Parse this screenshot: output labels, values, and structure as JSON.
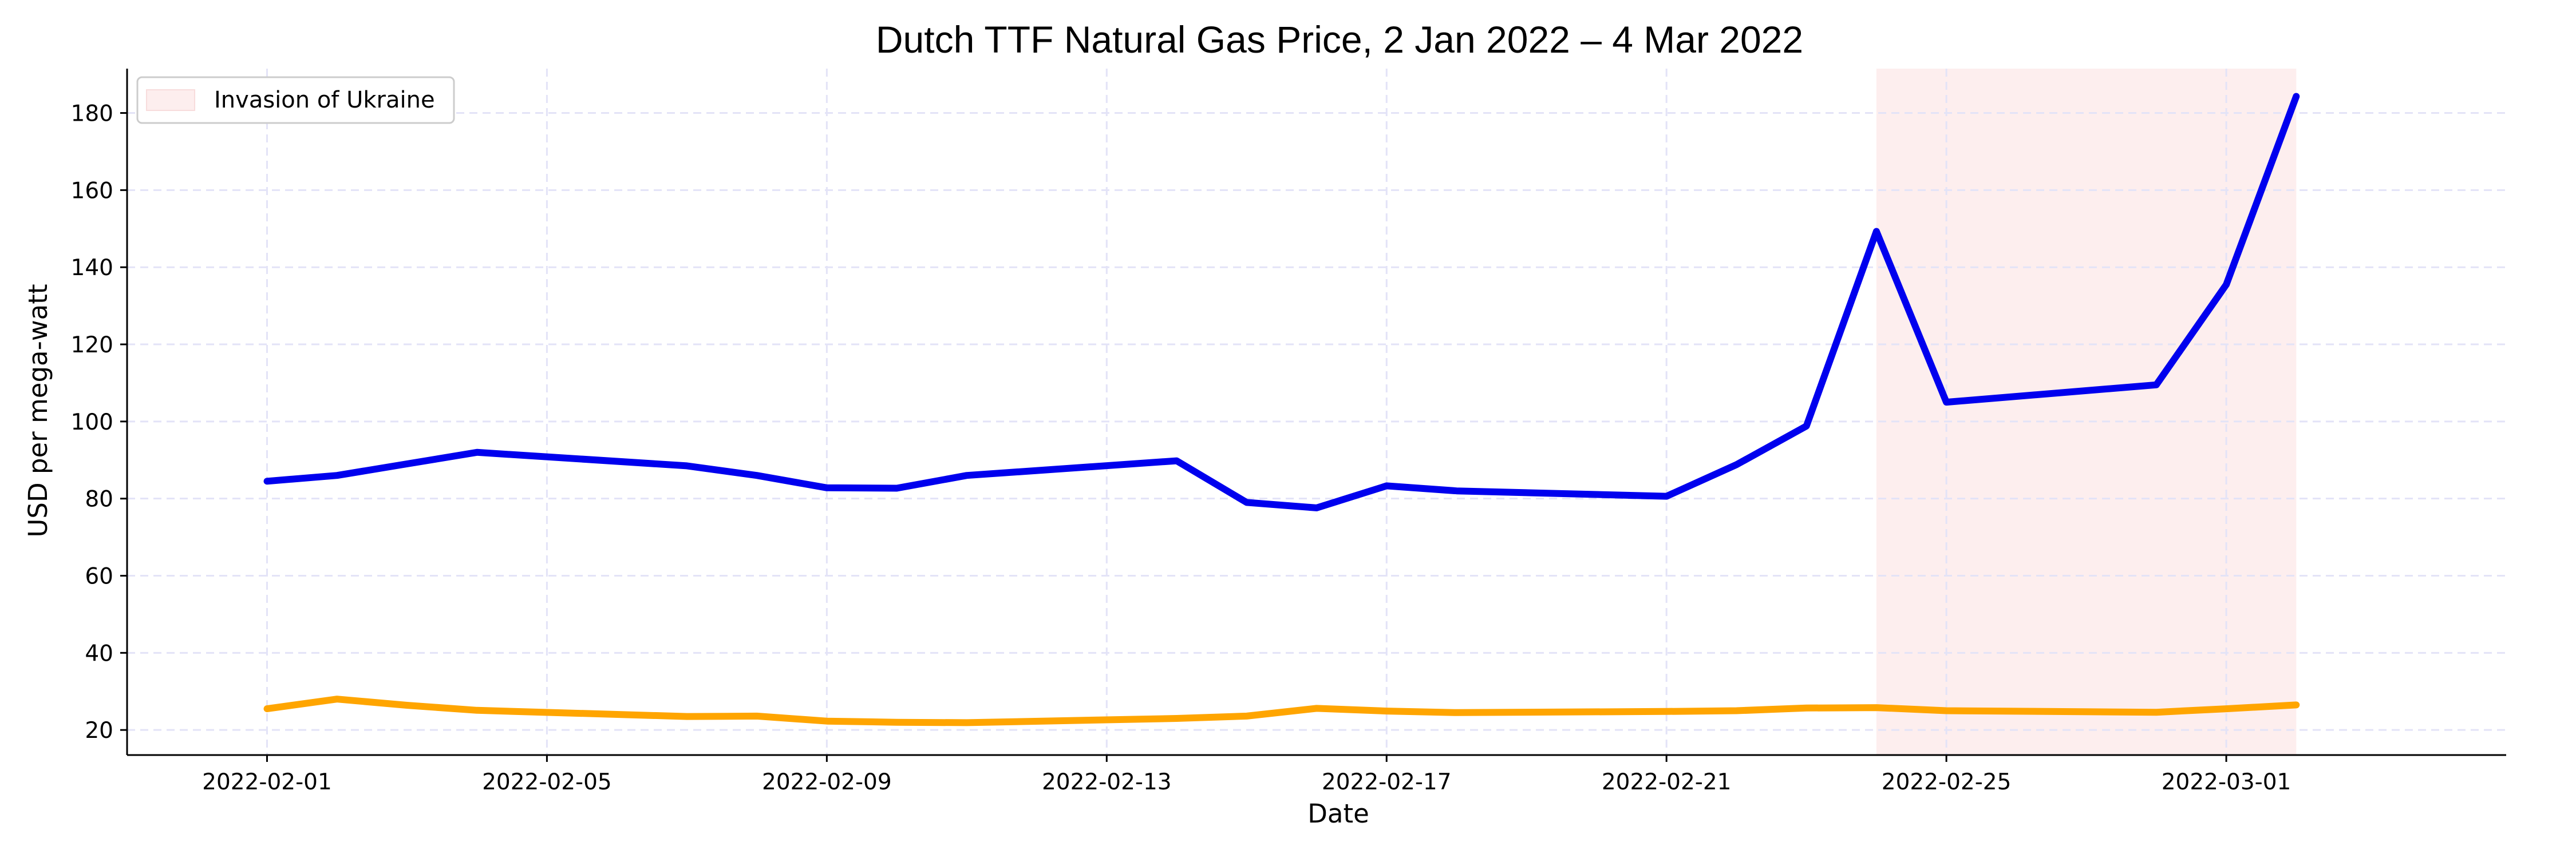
{
  "chart_data": {
    "type": "line",
    "title": "Dutch TTF Natural Gas Price, 2 Jan 2022 – 4 Mar 2022",
    "xlabel": "Date",
    "ylabel": "USD per mega-watt",
    "xlim": [
      "2022-01-30",
      "2022-03-05"
    ],
    "ylim": [
      13.5,
      191.5
    ],
    "x_ticks": [
      "2022-02-01",
      "2022-02-05",
      "2022-02-09",
      "2022-02-13",
      "2022-02-17",
      "2022-02-21",
      "2022-02-25",
      "2022-03-01"
    ],
    "y_ticks": [
      20,
      40,
      60,
      80,
      100,
      120,
      140,
      160,
      180
    ],
    "grid": true,
    "legend": {
      "placement": "top-left",
      "entries": [
        "Invasion of Ukraine"
      ]
    },
    "shaded_span": {
      "name": "Invasion of Ukraine",
      "start": "2022-02-24",
      "end": "2022-03-02",
      "color": "#fdeeee"
    },
    "series": [
      {
        "color": "#0000ee",
        "points": [
          [
            "2022-02-01",
            84.5
          ],
          [
            "2022-02-02",
            86.0
          ],
          [
            "2022-02-03",
            89.0
          ],
          [
            "2022-02-04",
            92.0
          ],
          [
            "2022-02-07",
            88.5
          ],
          [
            "2022-02-08",
            86.0
          ],
          [
            "2022-02-09",
            82.8
          ],
          [
            "2022-02-10",
            82.7
          ],
          [
            "2022-02-11",
            86.0
          ],
          [
            "2022-02-14",
            89.8
          ],
          [
            "2022-02-15",
            79.0
          ],
          [
            "2022-02-16",
            77.6
          ],
          [
            "2022-02-17",
            83.3
          ],
          [
            "2022-02-18",
            82.0
          ],
          [
            "2022-02-21",
            80.6
          ],
          [
            "2022-02-22",
            88.8
          ],
          [
            "2022-02-23",
            98.8
          ],
          [
            "2022-02-24",
            149.3
          ],
          [
            "2022-02-25",
            105.0
          ],
          [
            "2022-02-28",
            109.5
          ],
          [
            "2022-03-01",
            135.5
          ],
          [
            "2022-03-02",
            184.3
          ]
        ]
      },
      {
        "color": "#ffa500",
        "points": [
          [
            "2022-02-01",
            25.5
          ],
          [
            "2022-02-02",
            28.0
          ],
          [
            "2022-02-03",
            26.4
          ],
          [
            "2022-02-04",
            25.1
          ],
          [
            "2022-02-07",
            23.5
          ],
          [
            "2022-02-08",
            23.6
          ],
          [
            "2022-02-09",
            22.3
          ],
          [
            "2022-02-10",
            22.0
          ],
          [
            "2022-02-11",
            21.9
          ],
          [
            "2022-02-14",
            23.0
          ],
          [
            "2022-02-15",
            23.6
          ],
          [
            "2022-02-16",
            25.6
          ],
          [
            "2022-02-17",
            24.9
          ],
          [
            "2022-02-18",
            24.5
          ],
          [
            "2022-02-21",
            24.8
          ],
          [
            "2022-02-22",
            25.0
          ],
          [
            "2022-02-23",
            25.7
          ],
          [
            "2022-02-24",
            25.8
          ],
          [
            "2022-02-25",
            25.0
          ],
          [
            "2022-02-28",
            24.6
          ],
          [
            "2022-03-01",
            25.5
          ],
          [
            "2022-03-02",
            26.5
          ]
        ]
      }
    ]
  }
}
